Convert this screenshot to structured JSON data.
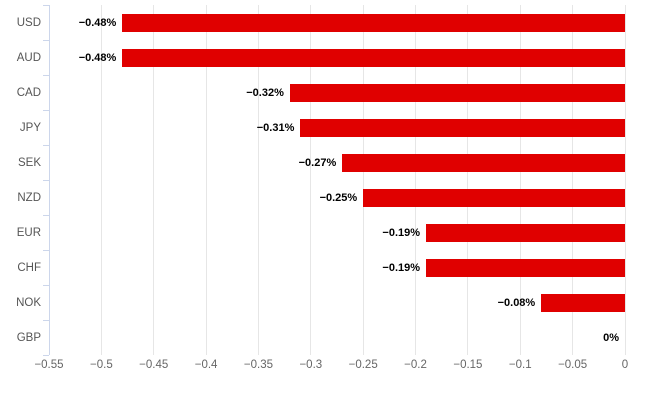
{
  "chart_data": {
    "type": "bar",
    "orientation": "horizontal",
    "title": "",
    "xlabel": "",
    "ylabel": "",
    "categories": [
      "USD",
      "AUD",
      "CAD",
      "JPY",
      "SEK",
      "NZD",
      "EUR",
      "CHF",
      "NOK",
      "GBP"
    ],
    "values": [
      -0.48,
      -0.48,
      -0.32,
      -0.31,
      -0.27,
      -0.25,
      -0.19,
      -0.19,
      -0.08,
      0
    ],
    "data_labels": [
      "−0.48%",
      "−0.48%",
      "−0.32%",
      "−0.31%",
      "−0.27%",
      "−0.25%",
      "−0.19%",
      "−0.19%",
      "−0.08%",
      "0%"
    ],
    "xlim": [
      -0.55,
      0
    ],
    "x_ticks": [
      -0.55,
      -0.5,
      -0.45,
      -0.4,
      -0.35,
      -0.3,
      -0.25,
      -0.2,
      -0.15,
      -0.1,
      -0.05,
      0
    ],
    "x_tick_labels": [
      "−0.55",
      "−0.5",
      "−0.45",
      "−0.4",
      "−0.35",
      "−0.3",
      "−0.25",
      "−0.2",
      "−0.15",
      "−0.1",
      "−0.05",
      "0"
    ],
    "grid": true,
    "legend": false,
    "colors": {
      "bar": "#e00000",
      "grid": "#e6e6e6",
      "axis_line": "#ccd6eb",
      "category_label": "#555555",
      "tick_label": "#666666",
      "data_label": "#000000",
      "background": "#ffffff"
    }
  }
}
